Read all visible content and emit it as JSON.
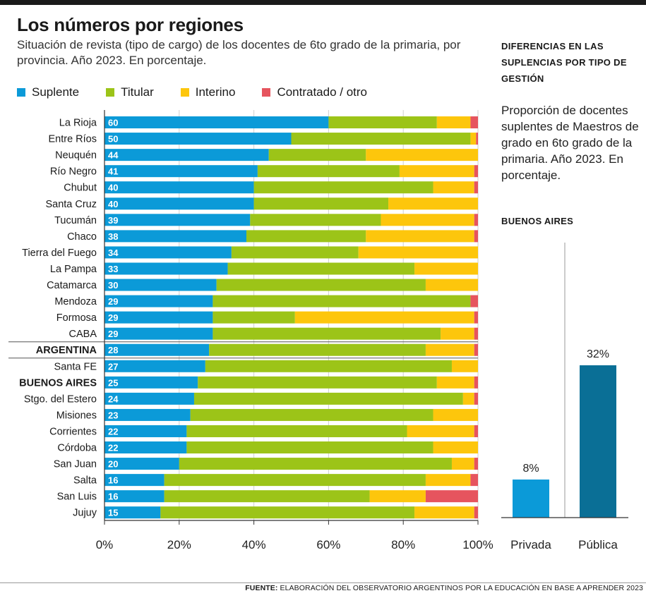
{
  "title": "Los números por regiones",
  "subtitle": "Situación de revista (tipo de cargo) de los docentes de 6to grado de la primaria, por provincia. Año 2023. En porcentaje.",
  "colors": {
    "suplente": "#0b9ad8",
    "titular": "#9cc418",
    "interino": "#fdc60c",
    "contratado": "#e6545e",
    "publica": "#0a6f96",
    "privada": "#0b9ad8"
  },
  "chart_data": [
    {
      "type": "bar",
      "orientation": "horizontal",
      "stacked": true,
      "title": "Los números por regiones",
      "legend": [
        "Suplente",
        "Titular",
        "Interino",
        "Contratado / otro"
      ],
      "categories": [
        "La Rioja",
        "Entre Ríos",
        "Neuquén",
        "Río Negro",
        "Chubut",
        "Santa Cruz",
        "Tucumán",
        "Chaco",
        "Tierra del Fuego",
        "La Pampa",
        "Catamarca",
        "Mendoza",
        "Formosa",
        "CABA",
        "ARGENTINA",
        "Santa FE",
        "BUENOS AIRES",
        "Stgo. del Estero",
        "Misiones",
        "Corrientes",
        "Córdoba",
        "San Juan",
        "Salta",
        "San Luis",
        "Jujuy"
      ],
      "bold_categories": [
        "ARGENTINA",
        "BUENOS AIRES"
      ],
      "series": [
        {
          "name": "Suplente",
          "values": [
            60,
            50,
            44,
            41,
            40,
            40,
            39,
            38,
            34,
            33,
            30,
            29,
            29,
            29,
            28,
            27,
            25,
            24,
            23,
            22,
            22,
            20,
            16,
            16,
            15
          ]
        },
        {
          "name": "Titular",
          "values": [
            29,
            48,
            26,
            38,
            48,
            36,
            35,
            32,
            34,
            50,
            56,
            69,
            22,
            61,
            58,
            66,
            64,
            72,
            65,
            59,
            66,
            73,
            70,
            55,
            68
          ]
        },
        {
          "name": "Interino",
          "values": [
            9,
            1.5,
            30,
            20,
            11,
            24,
            25,
            29,
            32,
            17,
            14,
            0,
            48,
            9,
            13,
            7,
            10,
            3,
            12,
            18,
            12,
            6,
            12,
            15,
            16
          ]
        },
        {
          "name": "Contratado / otro",
          "values": [
            2,
            0.5,
            0,
            1,
            1,
            0,
            1,
            1,
            0,
            0,
            0,
            2,
            1,
            1,
            1,
            0,
            1,
            1,
            0,
            1,
            0,
            1,
            2,
            14,
            1
          ]
        }
      ],
      "xlim": [
        0,
        100
      ],
      "xticks": [
        "0%",
        "20%",
        "40%",
        "60%",
        "80%",
        "100%"
      ]
    },
    {
      "type": "bar",
      "title": "DIFERENCIAS EN LAS SUPLENCIAS POR TIPO DE GESTIÓN",
      "subtitle": "BUENOS AIRES",
      "categories": [
        "Privada",
        "Pública"
      ],
      "values": [
        8,
        32
      ],
      "value_labels": [
        "8%",
        "32%"
      ],
      "ylim": [
        0,
        40
      ]
    }
  ],
  "legend": [
    {
      "label": "Suplente",
      "color": "#0b9ad8"
    },
    {
      "label": "Titular",
      "color": "#9cc418"
    },
    {
      "label": "Interino",
      "color": "#fdc60c"
    },
    {
      "label": "Contratado / otro",
      "color": "#e6545e"
    }
  ],
  "side": {
    "title": "DIFERENCIAS EN LAS SUPLENCIAS POR TIPO DE GESTIÓN",
    "description": "Proporción de docentes suplentes de Maestros de grado en 6to grado de la primaria. Año 2023. En porcentaje.",
    "subtitle": "BUENOS AIRES"
  },
  "source": {
    "label": "FUENTE:",
    "text": " ELABORACIÓN DEL OBSERVATORIO ARGENTINOS POR LA EDUCACIÓN EN BASE A APRENDER 2023"
  }
}
